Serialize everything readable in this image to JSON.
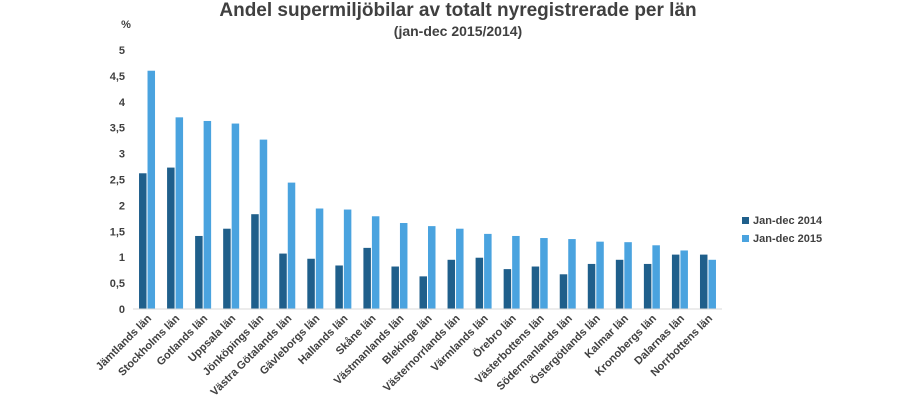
{
  "chart_data": {
    "type": "bar",
    "title": "Andel supermiljöbilar av totalt nyregistrerade per län",
    "subtitle": "(jan-dec 2015/2014)",
    "ylabel": "%",
    "ylim": [
      0,
      5
    ],
    "yticks": [
      "0",
      "0,5",
      "1",
      "1,5",
      "2",
      "2,5",
      "3",
      "3,5",
      "4",
      "4,5",
      "5"
    ],
    "grid": false,
    "legend_position": "right",
    "categories": [
      "Jämtlands län",
      "Stockholms län",
      "Gotlands län",
      "Uppsala län",
      "Jönköpings län",
      "Västra Götalands län",
      "Gävleborgs län",
      "Hallands län",
      "Skåne län",
      "Västmanlands län",
      "Blekinge län",
      "Västernorrlands län",
      "Värmlands län",
      "Örebro län",
      "Västerbottens län",
      "Södermanlands län",
      "Östergötlands län",
      "Kalmar län",
      "Kronobergs län",
      "Dalarnas län",
      "Norrbottens län"
    ],
    "series": [
      {
        "name": "Jan-dec 2014",
        "color": "#1f5f8b",
        "values": [
          2.62,
          2.73,
          1.41,
          1.55,
          1.83,
          1.07,
          0.97,
          0.84,
          1.18,
          0.82,
          0.63,
          0.95,
          0.99,
          0.77,
          0.82,
          0.67,
          0.87,
          0.95,
          0.87,
          1.05,
          1.05
        ]
      },
      {
        "name": "Jan-dec 2015",
        "color": "#4aa3df",
        "values": [
          4.6,
          3.7,
          3.63,
          3.58,
          3.27,
          2.44,
          1.94,
          1.92,
          1.79,
          1.66,
          1.6,
          1.55,
          1.45,
          1.41,
          1.37,
          1.35,
          1.3,
          1.29,
          1.23,
          1.13,
          0.95
        ]
      }
    ]
  }
}
